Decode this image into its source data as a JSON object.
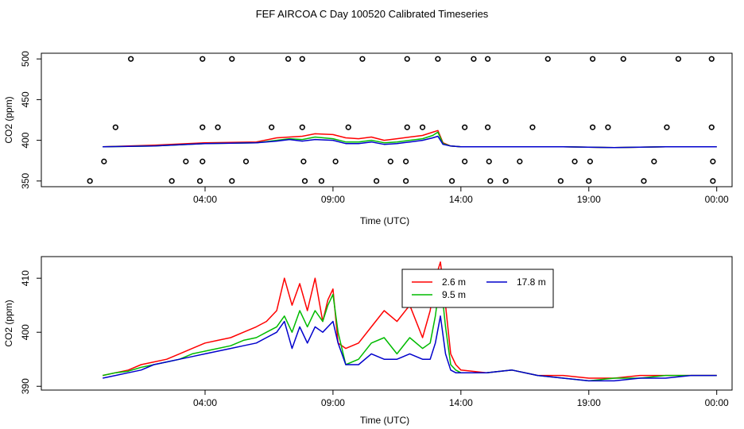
{
  "chart_data": [
    {
      "type": "scatter",
      "title": "FEF AIRCOA C  Day 100520  Calibrated Timeseries",
      "xlabel": "Time (UTC)",
      "ylabel": "CO2 (ppm)",
      "xlim": [
        -2.4,
        24.6
      ],
      "ylim": [
        343,
        507
      ],
      "yticks": [
        350,
        400,
        450,
        500
      ],
      "xticks": [
        {
          "v": 4,
          "label": "04:00"
        },
        {
          "v": 9,
          "label": "09:00"
        },
        {
          "v": 14,
          "label": "14:00"
        },
        {
          "v": 19,
          "label": "19:00"
        },
        {
          "v": 24,
          "label": "00:00"
        }
      ],
      "points": [
        {
          "x": 1.1,
          "y": 500
        },
        {
          "x": 3.9,
          "y": 500
        },
        {
          "x": 5.05,
          "y": 500
        },
        {
          "x": 7.25,
          "y": 500
        },
        {
          "x": 7.8,
          "y": 500
        },
        {
          "x": 10.15,
          "y": 500
        },
        {
          "x": 11.9,
          "y": 500
        },
        {
          "x": 13.1,
          "y": 500
        },
        {
          "x": 14.5,
          "y": 500
        },
        {
          "x": 15.05,
          "y": 500
        },
        {
          "x": 17.4,
          "y": 500
        },
        {
          "x": 19.15,
          "y": 500
        },
        {
          "x": 20.35,
          "y": 500
        },
        {
          "x": 22.5,
          "y": 500
        },
        {
          "x": 23.8,
          "y": 500
        },
        {
          "x": 0.5,
          "y": 416
        },
        {
          "x": 3.9,
          "y": 416
        },
        {
          "x": 4.5,
          "y": 416
        },
        {
          "x": 6.6,
          "y": 416
        },
        {
          "x": 7.8,
          "y": 416
        },
        {
          "x": 9.6,
          "y": 416
        },
        {
          "x": 11.9,
          "y": 416
        },
        {
          "x": 12.5,
          "y": 416
        },
        {
          "x": 14.15,
          "y": 416
        },
        {
          "x": 15.05,
          "y": 416
        },
        {
          "x": 16.8,
          "y": 416
        },
        {
          "x": 19.15,
          "y": 416
        },
        {
          "x": 19.75,
          "y": 416
        },
        {
          "x": 22.05,
          "y": 416
        },
        {
          "x": 23.8,
          "y": 416
        },
        {
          "x": 0.05,
          "y": 374
        },
        {
          "x": 3.25,
          "y": 374
        },
        {
          "x": 3.9,
          "y": 374
        },
        {
          "x": 5.6,
          "y": 374
        },
        {
          "x": 7.85,
          "y": 374
        },
        {
          "x": 9.1,
          "y": 374
        },
        {
          "x": 11.25,
          "y": 374
        },
        {
          "x": 11.85,
          "y": 374
        },
        {
          "x": 14.15,
          "y": 374
        },
        {
          "x": 15.1,
          "y": 374
        },
        {
          "x": 16.3,
          "y": 374
        },
        {
          "x": 18.45,
          "y": 374
        },
        {
          "x": 19.05,
          "y": 374
        },
        {
          "x": 21.55,
          "y": 374
        },
        {
          "x": 23.85,
          "y": 374
        },
        {
          "x": -0.5,
          "y": 350
        },
        {
          "x": 2.7,
          "y": 350
        },
        {
          "x": 3.8,
          "y": 350
        },
        {
          "x": 5.05,
          "y": 350
        },
        {
          "x": 7.9,
          "y": 350
        },
        {
          "x": 8.55,
          "y": 350
        },
        {
          "x": 10.7,
          "y": 350
        },
        {
          "x": 11.85,
          "y": 350
        },
        {
          "x": 13.65,
          "y": 350
        },
        {
          "x": 15.15,
          "y": 350
        },
        {
          "x": 15.75,
          "y": 350
        },
        {
          "x": 17.9,
          "y": 350
        },
        {
          "x": 19.0,
          "y": 350
        },
        {
          "x": 21.15,
          "y": 350
        },
        {
          "x": 23.85,
          "y": 350
        }
      ],
      "series": [
        {
          "name": "2.6 m",
          "color": "#ff0000",
          "x": [
            0,
            2,
            4,
            6,
            6.8,
            7.3,
            7.8,
            8.3,
            9.0,
            9.5,
            10.0,
            10.5,
            11.0,
            11.5,
            12.0,
            12.5,
            12.9,
            13.1,
            13.3,
            13.6,
            14,
            16,
            18,
            20,
            22,
            24
          ],
          "y": [
            392,
            394,
            397,
            398,
            403,
            404,
            405,
            408,
            407,
            403,
            402,
            404,
            400,
            402,
            404,
            406,
            410,
            412,
            397,
            393,
            392,
            392,
            392,
            391,
            392,
            392
          ]
        },
        {
          "name": "9.5 m",
          "color": "#00bb00",
          "x": [
            0,
            2,
            4,
            6,
            6.8,
            7.3,
            7.8,
            8.3,
            9.0,
            9.5,
            10.0,
            10.5,
            11.0,
            11.5,
            12.0,
            12.5,
            12.9,
            13.1,
            13.3,
            13.6,
            14,
            16,
            18,
            20,
            22,
            24
          ],
          "y": [
            392,
            393,
            396,
            397,
            400,
            402,
            401,
            404,
            402,
            398,
            398,
            400,
            397,
            398,
            400,
            402,
            406,
            410,
            396,
            393,
            392,
            392,
            392,
            391,
            392,
            392
          ]
        },
        {
          "name": "17.8 m",
          "color": "#0000cc",
          "x": [
            0,
            2,
            4,
            6,
            6.8,
            7.3,
            7.8,
            8.3,
            9.0,
            9.5,
            10.0,
            10.5,
            11.0,
            11.5,
            12.0,
            12.5,
            12.9,
            13.1,
            13.3,
            13.6,
            14,
            16,
            18,
            20,
            22,
            24
          ],
          "y": [
            392,
            393,
            396,
            397,
            399,
            401,
            399,
            401,
            400,
            396,
            396,
            398,
            395,
            396,
            398,
            400,
            403,
            405,
            395,
            393,
            392,
            392,
            392,
            391,
            392,
            392
          ]
        }
      ]
    },
    {
      "type": "line",
      "xlabel": "Time (UTC)",
      "ylabel": "CO2 (ppm)",
      "xlim": [
        -2.4,
        24.6
      ],
      "ylim": [
        389.3,
        414
      ],
      "yticks": [
        390,
        400,
        410
      ],
      "xticks": [
        {
          "v": 4,
          "label": "04:00"
        },
        {
          "v": 9,
          "label": "09:00"
        },
        {
          "v": 14,
          "label": "14:00"
        },
        {
          "v": 19,
          "label": "19:00"
        },
        {
          "v": 24,
          "label": "00:00"
        }
      ],
      "legend": {
        "position": "top-center",
        "entries": [
          {
            "name": "2.6 m",
            "color": "#ff0000"
          },
          {
            "name": "9.5 m",
            "color": "#00bb00"
          },
          {
            "name": "17.8 m",
            "color": "#0000cc"
          }
        ]
      },
      "series": [
        {
          "name": "2.6 m",
          "color": "#ff0000",
          "x": [
            0,
            0.5,
            1,
            1.5,
            2,
            2.5,
            3,
            3.5,
            4,
            4.5,
            5,
            5.5,
            6,
            6.4,
            6.8,
            7.1,
            7.4,
            7.7,
            8.0,
            8.3,
            8.6,
            8.8,
            9.0,
            9.2,
            9.5,
            10.0,
            10.5,
            11.0,
            11.5,
            12.0,
            12.5,
            12.8,
            13.0,
            13.2,
            13.4,
            13.6,
            13.8,
            14.0,
            15.0,
            16.0,
            17.0,
            18.0,
            19.0,
            20.0,
            21.0,
            22.0,
            23.0,
            24.0
          ],
          "y": [
            392,
            392.5,
            393,
            394,
            394.5,
            395,
            396,
            397,
            398,
            398.5,
            399,
            400,
            401,
            402,
            404,
            410,
            405,
            409,
            404,
            410,
            402,
            406,
            408,
            398,
            397,
            398,
            401,
            404,
            402,
            405,
            399,
            404,
            410,
            413,
            405,
            396,
            394,
            393,
            392.5,
            393,
            392,
            392,
            391.5,
            391.5,
            392,
            392,
            392,
            392
          ]
        },
        {
          "name": "9.5 m",
          "color": "#00bb00",
          "x": [
            0,
            0.5,
            1,
            1.5,
            2,
            2.5,
            3,
            3.5,
            4,
            4.5,
            5,
            5.5,
            6,
            6.4,
            6.8,
            7.1,
            7.4,
            7.7,
            8.0,
            8.3,
            8.6,
            8.8,
            9.0,
            9.2,
            9.5,
            10.0,
            10.5,
            11.0,
            11.5,
            12.0,
            12.5,
            12.8,
            13.0,
            13.2,
            13.4,
            13.6,
            13.8,
            14.0,
            15.0,
            16.0,
            17.0,
            18.0,
            19.0,
            20.0,
            21.0,
            22.0,
            23.0,
            24.0
          ],
          "y": [
            392,
            392.5,
            392.8,
            393.5,
            394,
            394.5,
            395,
            396,
            396.5,
            397,
            397.5,
            398.5,
            399,
            400,
            401,
            403,
            400,
            404,
            401,
            404,
            402,
            405,
            407,
            400,
            394,
            395,
            398,
            399,
            396,
            399,
            397,
            398,
            403,
            410,
            401,
            394,
            393,
            392.5,
            392.5,
            393,
            392,
            391.5,
            391,
            391.5,
            391.5,
            392,
            392,
            392
          ]
        },
        {
          "name": "17.8 m",
          "color": "#0000cc",
          "x": [
            0,
            0.5,
            1,
            1.5,
            2,
            2.5,
            3,
            3.5,
            4,
            4.5,
            5,
            5.5,
            6,
            6.4,
            6.8,
            7.1,
            7.4,
            7.7,
            8.0,
            8.3,
            8.6,
            8.8,
            9.0,
            9.2,
            9.5,
            10.0,
            10.5,
            11.0,
            11.5,
            12.0,
            12.5,
            12.8,
            13.0,
            13.2,
            13.4,
            13.6,
            13.8,
            14.0,
            15.0,
            16.0,
            17.0,
            18.0,
            19.0,
            20.0,
            21.0,
            22.0,
            23.0,
            24.0
          ],
          "y": [
            391.5,
            392,
            392.5,
            393,
            394,
            394.5,
            395,
            395.5,
            396,
            396.5,
            397,
            397.5,
            398,
            399,
            400,
            402,
            397,
            401,
            398,
            401,
            400,
            401,
            402,
            398,
            394,
            394,
            396,
            395,
            395,
            396,
            395,
            395,
            398,
            403,
            396,
            393,
            392.5,
            392.5,
            392.5,
            393,
            392,
            391.5,
            391,
            391,
            391.5,
            391.5,
            392,
            392
          ]
        }
      ]
    }
  ]
}
